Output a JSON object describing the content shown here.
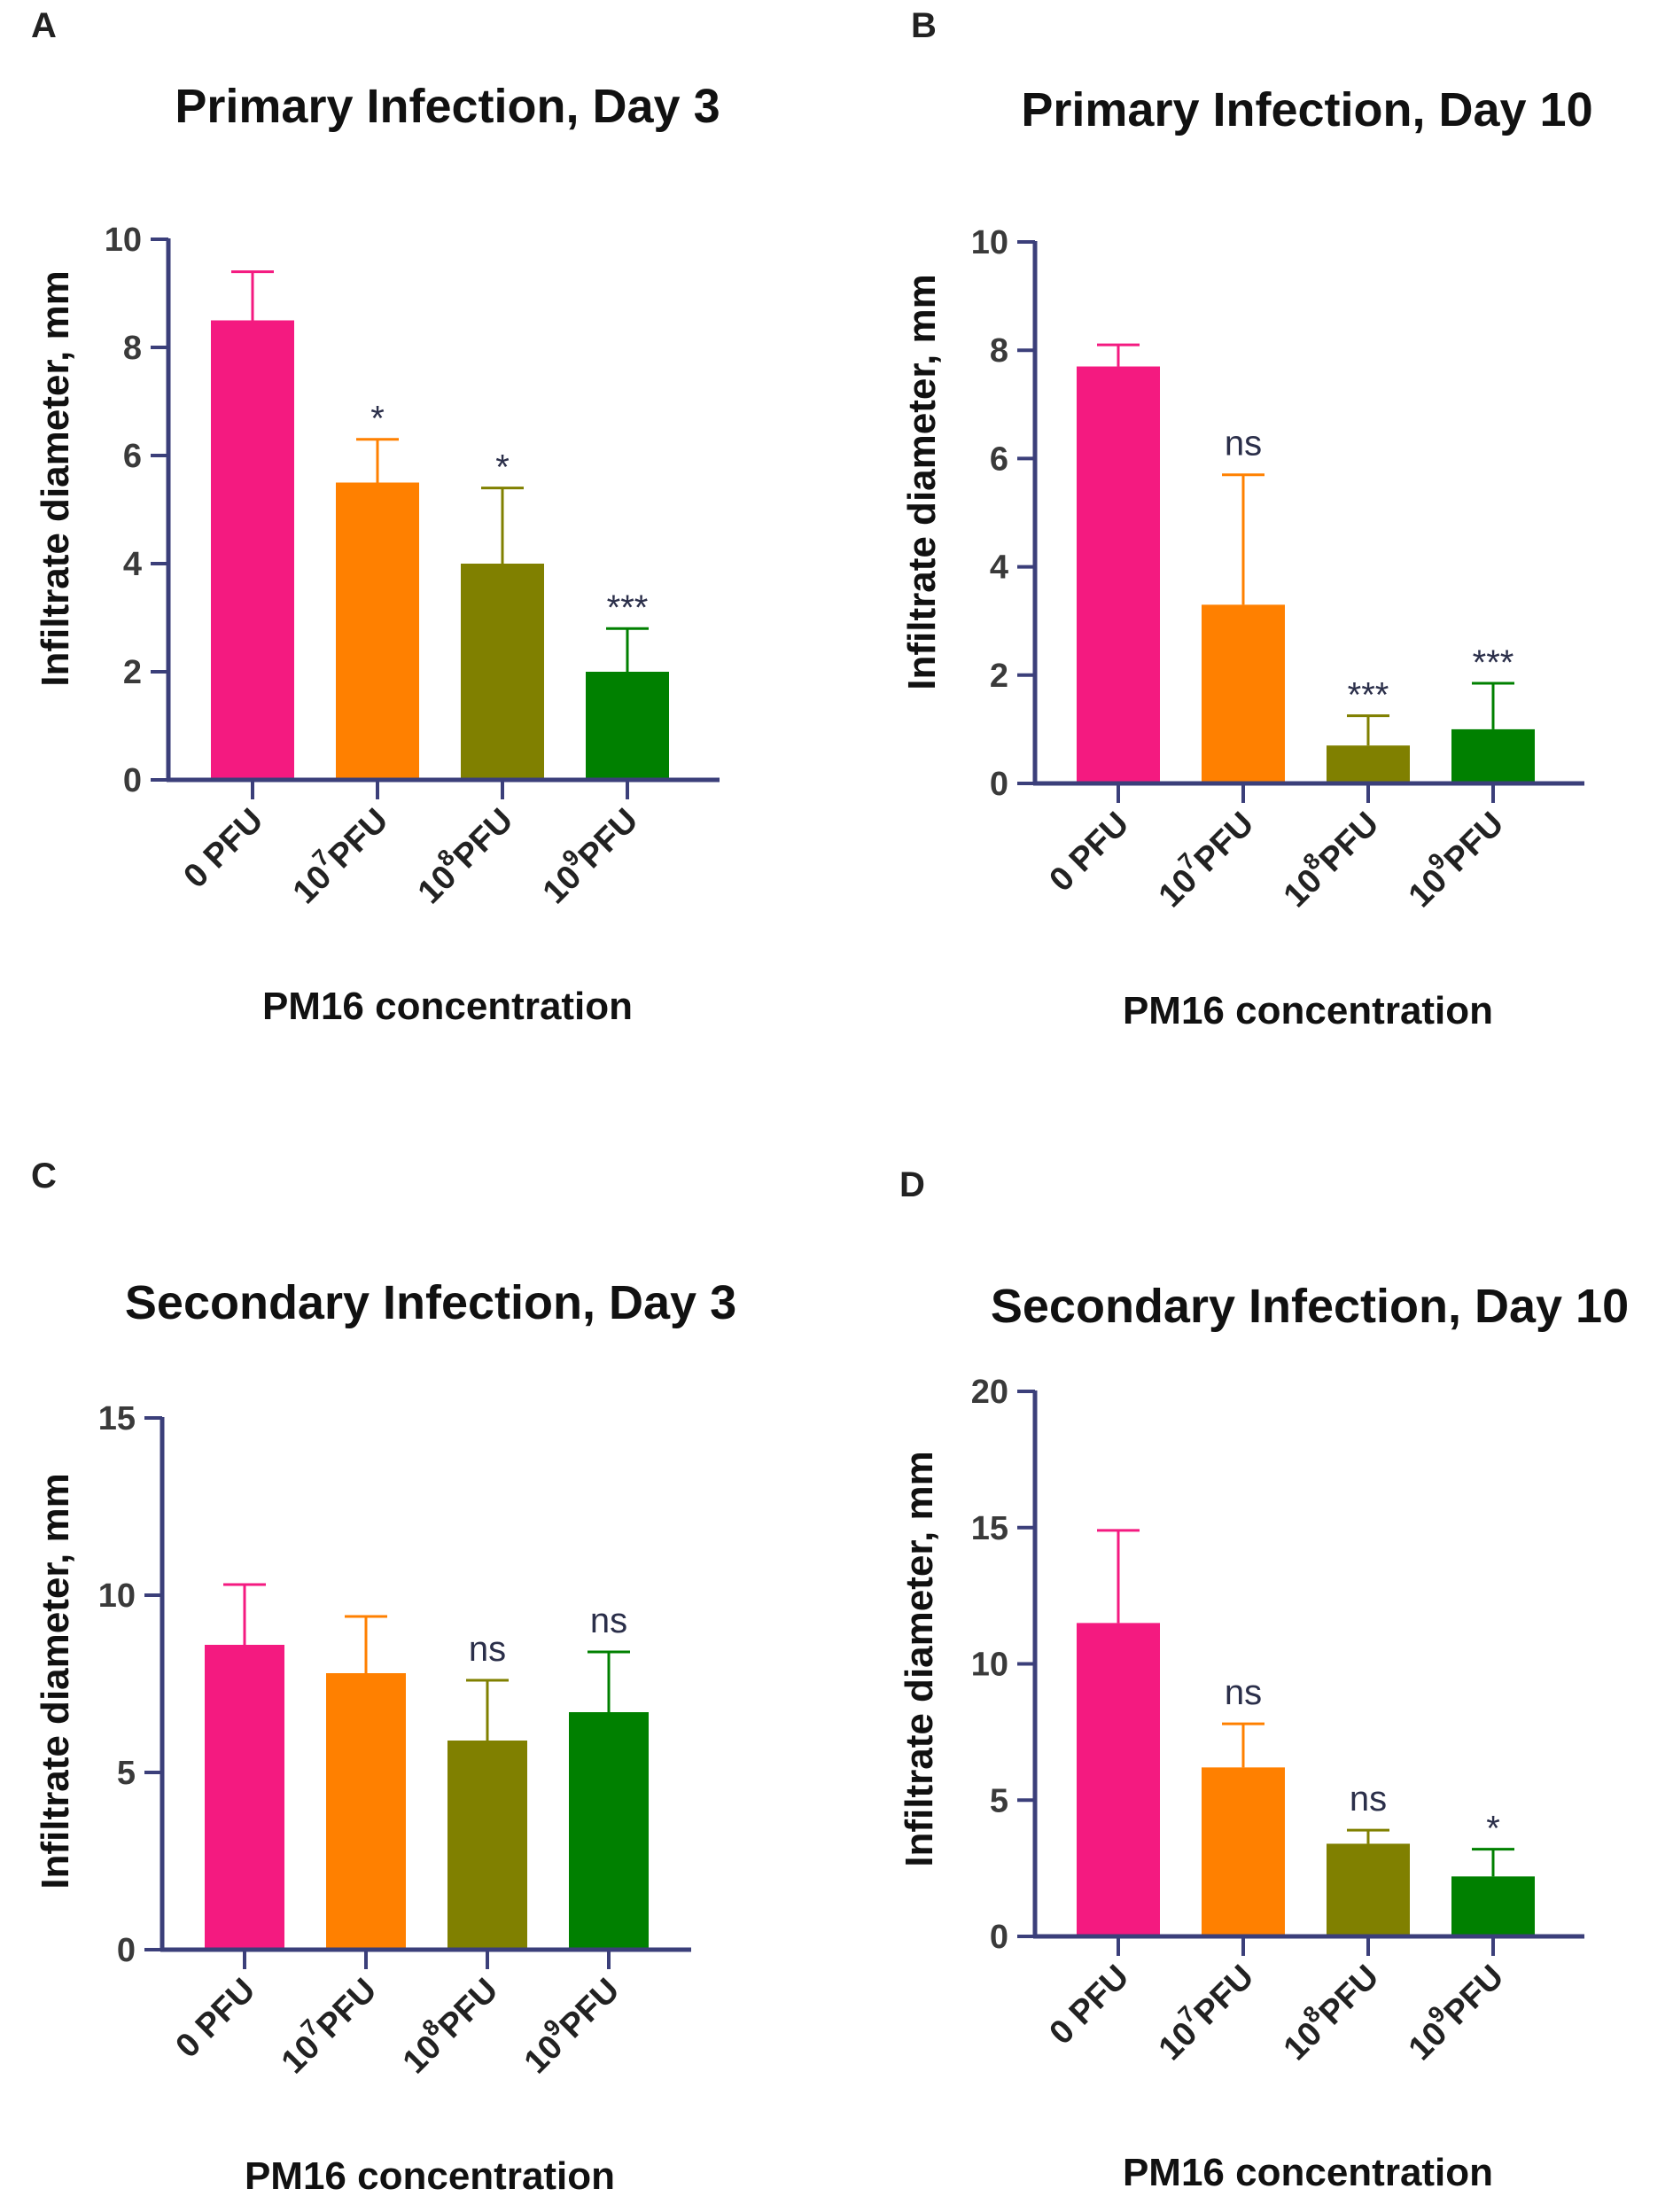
{
  "axis_color": "#3b3f7a",
  "category_colors": [
    "#f41a80",
    "#ff8000",
    "#808000",
    "#008000"
  ],
  "categories": [
    {
      "base": "0 PFU",
      "sup": "",
      "suffix": ""
    },
    {
      "base": "10",
      "sup": "7",
      "suffix": "PFU"
    },
    {
      "base": "10",
      "sup": "8",
      "suffix": "PFU"
    },
    {
      "base": "10",
      "sup": "9",
      "suffix": "PFU"
    }
  ],
  "chart_data": [
    {
      "panel": "A",
      "type": "bar",
      "title": "Primary Infection, Day 3",
      "xlabel": "PM16 concentration",
      "ylabel": "Infiltrate diameter, mm",
      "categories": [
        "0 PFU",
        "10^7 PFU",
        "10^8 PFU",
        "10^9 PFU"
      ],
      "values": [
        8.5,
        5.5,
        4.0,
        2.0
      ],
      "errors": [
        0.9,
        0.8,
        1.4,
        0.8
      ],
      "significance": [
        "",
        "*",
        "*",
        "***"
      ],
      "ylim": [
        0,
        10
      ],
      "yticks": [
        0,
        2,
        4,
        6,
        8,
        10
      ]
    },
    {
      "panel": "B",
      "type": "bar",
      "title": "Primary Infection, Day 10",
      "xlabel": "PM16 concentration",
      "ylabel": "Infiltrate diameter, mm",
      "categories": [
        "0 PFU",
        "10^7 PFU",
        "10^8 PFU",
        "10^9 PFU"
      ],
      "values": [
        7.7,
        3.3,
        0.7,
        1.0
      ],
      "errors": [
        0.4,
        2.4,
        0.55,
        0.85
      ],
      "significance": [
        "",
        "ns",
        "***",
        "***"
      ],
      "ylim": [
        0,
        10
      ],
      "yticks": [
        0,
        2,
        4,
        6,
        8,
        10
      ]
    },
    {
      "panel": "C",
      "type": "bar",
      "title": "Secondary Infection, Day 3",
      "xlabel": "PM16 concentration",
      "ylabel": "Infiltrate diameter, mm",
      "categories": [
        "0 PFU",
        "10^7 PFU",
        "10^8 PFU",
        "10^9 PFU"
      ],
      "values": [
        8.6,
        7.8,
        5.9,
        6.7
      ],
      "errors": [
        1.7,
        1.6,
        1.7,
        1.7
      ],
      "significance": [
        "",
        "",
        "ns",
        "ns"
      ],
      "ylim": [
        0,
        15
      ],
      "yticks": [
        0,
        5,
        10,
        15
      ]
    },
    {
      "panel": "D",
      "type": "bar",
      "title": "Secondary Infection, Day 10",
      "xlabel": "PM16 concentration",
      "ylabel": "Infiltrate diameter, mm",
      "categories": [
        "0 PFU",
        "10^7 PFU",
        "10^8 PFU",
        "10^9 PFU"
      ],
      "values": [
        11.5,
        6.2,
        3.4,
        2.2
      ],
      "errors": [
        3.4,
        1.6,
        0.5,
        1.0
      ],
      "significance": [
        "",
        "ns",
        "ns",
        "*"
      ],
      "ylim": [
        0,
        20
      ],
      "yticks": [
        0,
        5,
        10,
        15,
        20
      ]
    }
  ]
}
